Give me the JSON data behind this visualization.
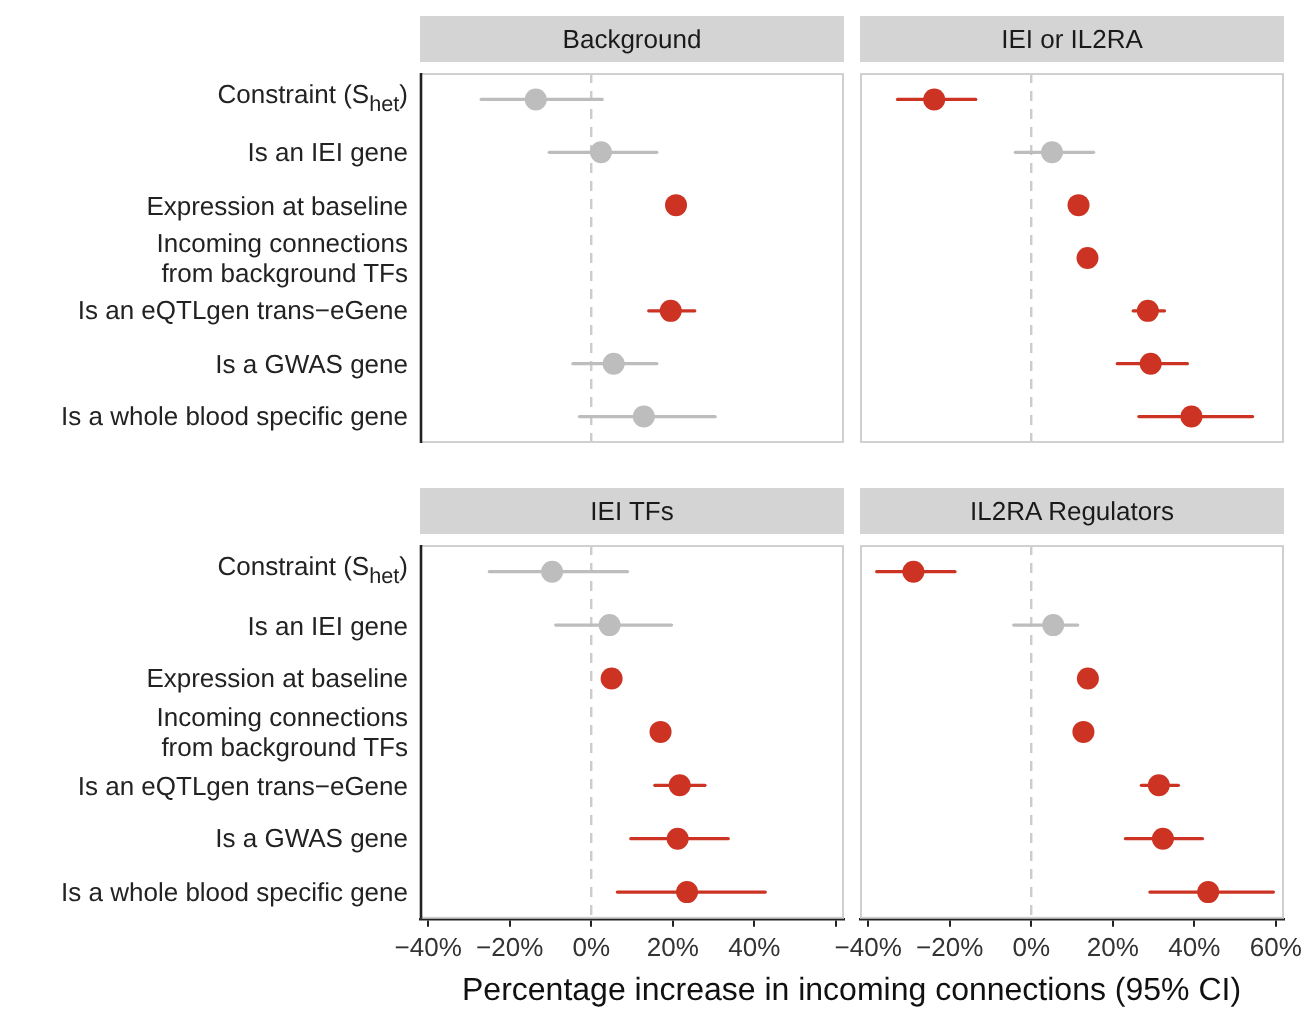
{
  "chart_data": [
    {
      "type": "scatter",
      "title": "Background",
      "orientation": "horizontal",
      "marker": "circle",
      "tick_labels": "y",
      "categories": [
        "Constraint (S$_{het}$)",
        "Is an IEI gene",
        "Expression at baseline",
        "Incoming connections\nfrom background TFs",
        "Is an eQTLgen trans−eGene",
        "Is a GWAS gene",
        "Is a whole blood specific gene"
      ],
      "values": [
        -13.6,
        2.4,
        20.8,
        null,
        19.5,
        5.5,
        12.9
      ],
      "errors": [
        [
          -27,
          2.7
        ],
        [
          -10.3,
          16.1
        ],
        null,
        null,
        [
          14.1,
          25.4
        ],
        [
          -4.5,
          16.1
        ],
        [
          -2.9,
          30.4
        ]
      ],
      "colors": [
        "#bdbdbd",
        "#bdbdbd",
        "#cc3322",
        "#cc3322",
        "#cc3322",
        "#bdbdbd",
        "#bdbdbd"
      ],
      "xlim": [
        -42,
        62
      ],
      "ref_lines": [
        {
          "axis": "x",
          "value": 0,
          "color": "#cccccc",
          "line_style": "dashed"
        }
      ]
    },
    {
      "type": "scatter",
      "title": "IEI or IL2RA",
      "orientation": "horizontal",
      "marker": "circle",
      "tick_labels": false,
      "categories": [
        null,
        null,
        null,
        null,
        null,
        null,
        null
      ],
      "values": [
        -23.8,
        5.1,
        11.6,
        13.8,
        28.6,
        29.3,
        39.3
      ],
      "errors": [
        [
          -32.8,
          -13.6
        ],
        [
          -3.9,
          15.3
        ],
        null,
        null,
        [
          25,
          32.7
        ],
        [
          21.1,
          38.3
        ],
        [
          26.4,
          54.3
        ]
      ],
      "colors": [
        "#cc3322",
        "#bdbdbd",
        "#cc3322",
        "#cc3322",
        "#cc3322",
        "#cc3322",
        "#cc3322"
      ],
      "xlim": [
        -42,
        62
      ],
      "ref_lines": [
        {
          "axis": "x",
          "value": 0,
          "color": "#cccccc",
          "line_style": "dashed"
        }
      ]
    },
    {
      "type": "scatter",
      "title": "IEI TFs",
      "orientation": "horizontal",
      "marker": "circle",
      "xlabel": "Percentage increase in incoming connections (95% CI)",
      "categories": [
        "Constraint (S$_{het}$)",
        "Is an IEI gene",
        "Expression at baseline",
        "Incoming connections\nfrom background TFs",
        "Is an eQTLgen trans−eGene",
        "Is a GWAS gene",
        "Is a whole blood specific gene"
      ],
      "values": [
        -9.6,
        4.5,
        5.0,
        17.0,
        21.7,
        21.2,
        23.5
      ],
      "errors": [
        [
          -25,
          8.9
        ],
        [
          -8.7,
          19.7
        ],
        null,
        null,
        [
          15.6,
          27.9
        ],
        [
          9.7,
          33.6
        ],
        [
          6.4,
          42.7
        ]
      ],
      "colors": [
        "#bdbdbd",
        "#bdbdbd",
        "#cc3322",
        "#cc3322",
        "#cc3322",
        "#cc3322",
        "#cc3322"
      ],
      "xlim": [
        -42,
        62
      ],
      "xticks": [
        {
          "value": -40,
          "label": "−40%"
        },
        {
          "value": -20,
          "label": "−20%"
        },
        {
          "value": 0,
          "label": "0%"
        },
        {
          "value": 20,
          "label": "20%"
        },
        {
          "value": 40,
          "label": "40%"
        },
        {
          "value": 60,
          "label": null
        }
      ],
      "ref_lines": [
        {
          "axis": "x",
          "value": 0,
          "color": "#cccccc",
          "line_style": "dashed"
        }
      ]
    },
    {
      "type": "scatter",
      "title": "IL2RA Regulators",
      "orientation": "horizontal",
      "marker": "circle",
      "tick_labels": "x",
      "categories": [
        null,
        null,
        null,
        null,
        null,
        null,
        null
      ],
      "values": [
        -28.9,
        5.4,
        13.9,
        12.8,
        31.3,
        32.3,
        43.4
      ],
      "errors": [
        [
          -37.9,
          -18.7
        ],
        [
          -4.3,
          11.4
        ],
        null,
        null,
        [
          27,
          36.1
        ],
        [
          23.1,
          42
        ],
        [
          29.1,
          59.4
        ]
      ],
      "colors": [
        "#cc3322",
        "#bdbdbd",
        "#cc3322",
        "#cc3322",
        "#cc3322",
        "#cc3322",
        "#cc3322"
      ],
      "xlim": [
        -42,
        62
      ],
      "xticks": [
        {
          "value": -40,
          "label": "−40%"
        },
        {
          "value": -20,
          "label": "−20%"
        },
        {
          "value": 0,
          "label": "0%"
        },
        {
          "value": 20,
          "label": "20%"
        },
        {
          "value": 40,
          "label": "40%"
        },
        {
          "value": 60,
          "label": "60%"
        }
      ],
      "ref_lines": [
        {
          "axis": "x",
          "value": 0,
          "color": "#cccccc",
          "line_style": "dashed"
        }
      ]
    }
  ]
}
